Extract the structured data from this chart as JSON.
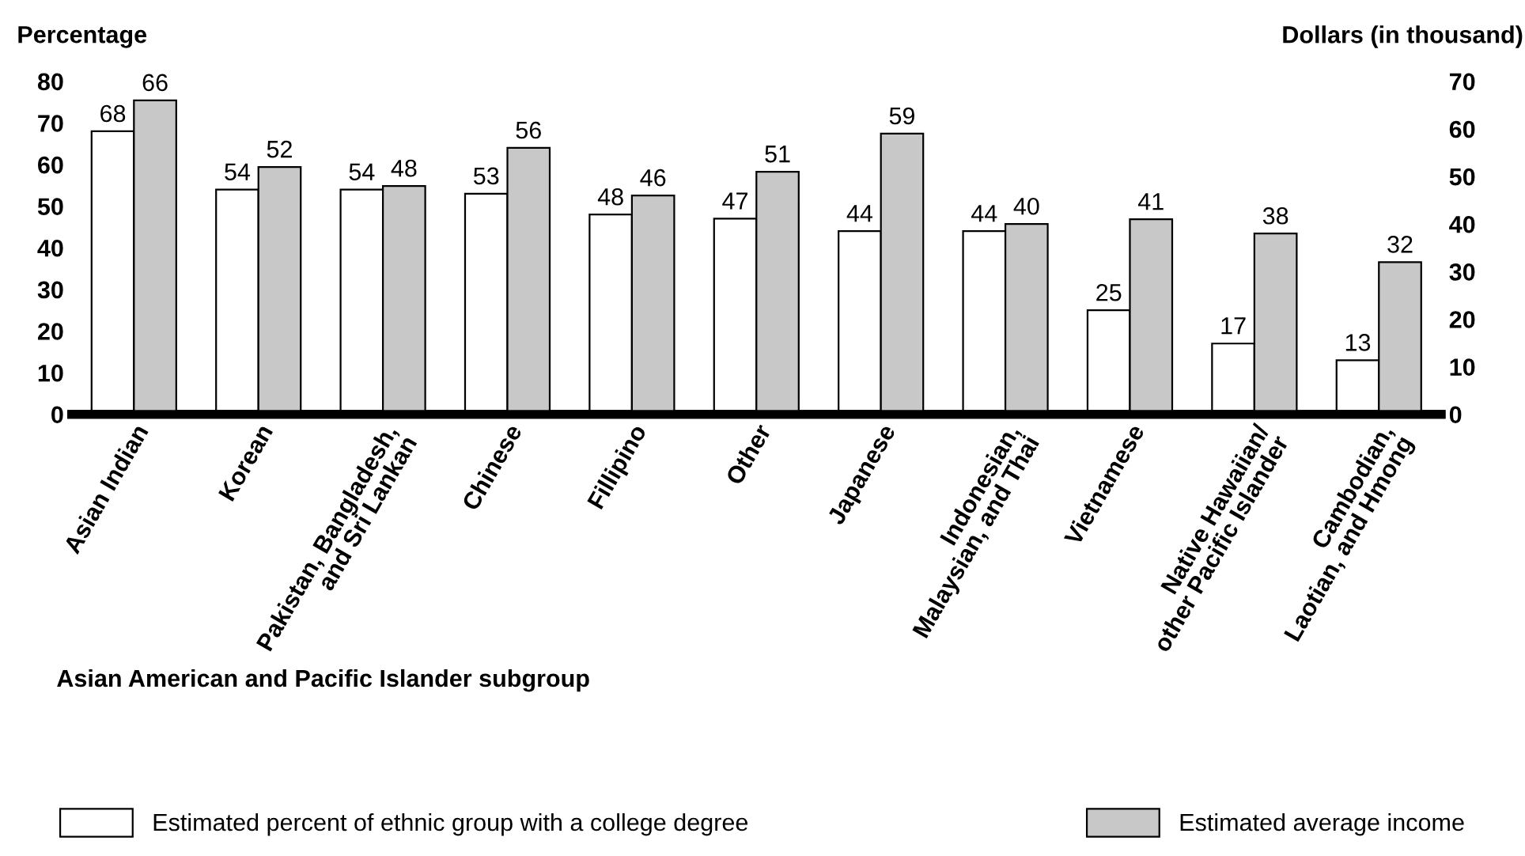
{
  "chart_data": {
    "type": "bar",
    "ylabel": "Percentage",
    "y2label": "Dollars (in thousand)",
    "xlabel": "Asian American and Pacific Islander subgroup",
    "categories": [
      "Asian Indian",
      "Korean",
      "Pakistan, Bangladesh,\nand Sri Lankan",
      "Chinese",
      "Fillipino",
      "Other",
      "Japanese",
      "Indonesian,\nMalaysian, and Thai",
      "Vietnamese",
      "Native Hawaiian/\nother Pacific Islander",
      "Cambodian,\nLaotian, and Hmong"
    ],
    "series": [
      {
        "name": "Estimated percent of ethnic group with a college degree",
        "color": "#ffffff",
        "values": [
          68,
          54,
          54,
          53,
          48,
          47,
          44,
          44,
          25,
          17,
          13
        ]
      },
      {
        "name": "Estimated average income",
        "color": "#c8c8c8",
        "axis": "y2",
        "values": [
          66,
          52,
          48,
          56,
          46,
          51,
          59,
          40,
          41,
          38,
          32
        ]
      }
    ],
    "ylim": [
      0,
      80
    ],
    "yticks": [
      0,
      10,
      20,
      30,
      40,
      50,
      60,
      70,
      80
    ],
    "y2lim": [
      0,
      70
    ],
    "y2ticks": [
      0,
      10,
      20,
      30,
      40,
      50,
      60,
      70
    ],
    "data_labels": true,
    "grid": false,
    "legend": "bottom"
  }
}
